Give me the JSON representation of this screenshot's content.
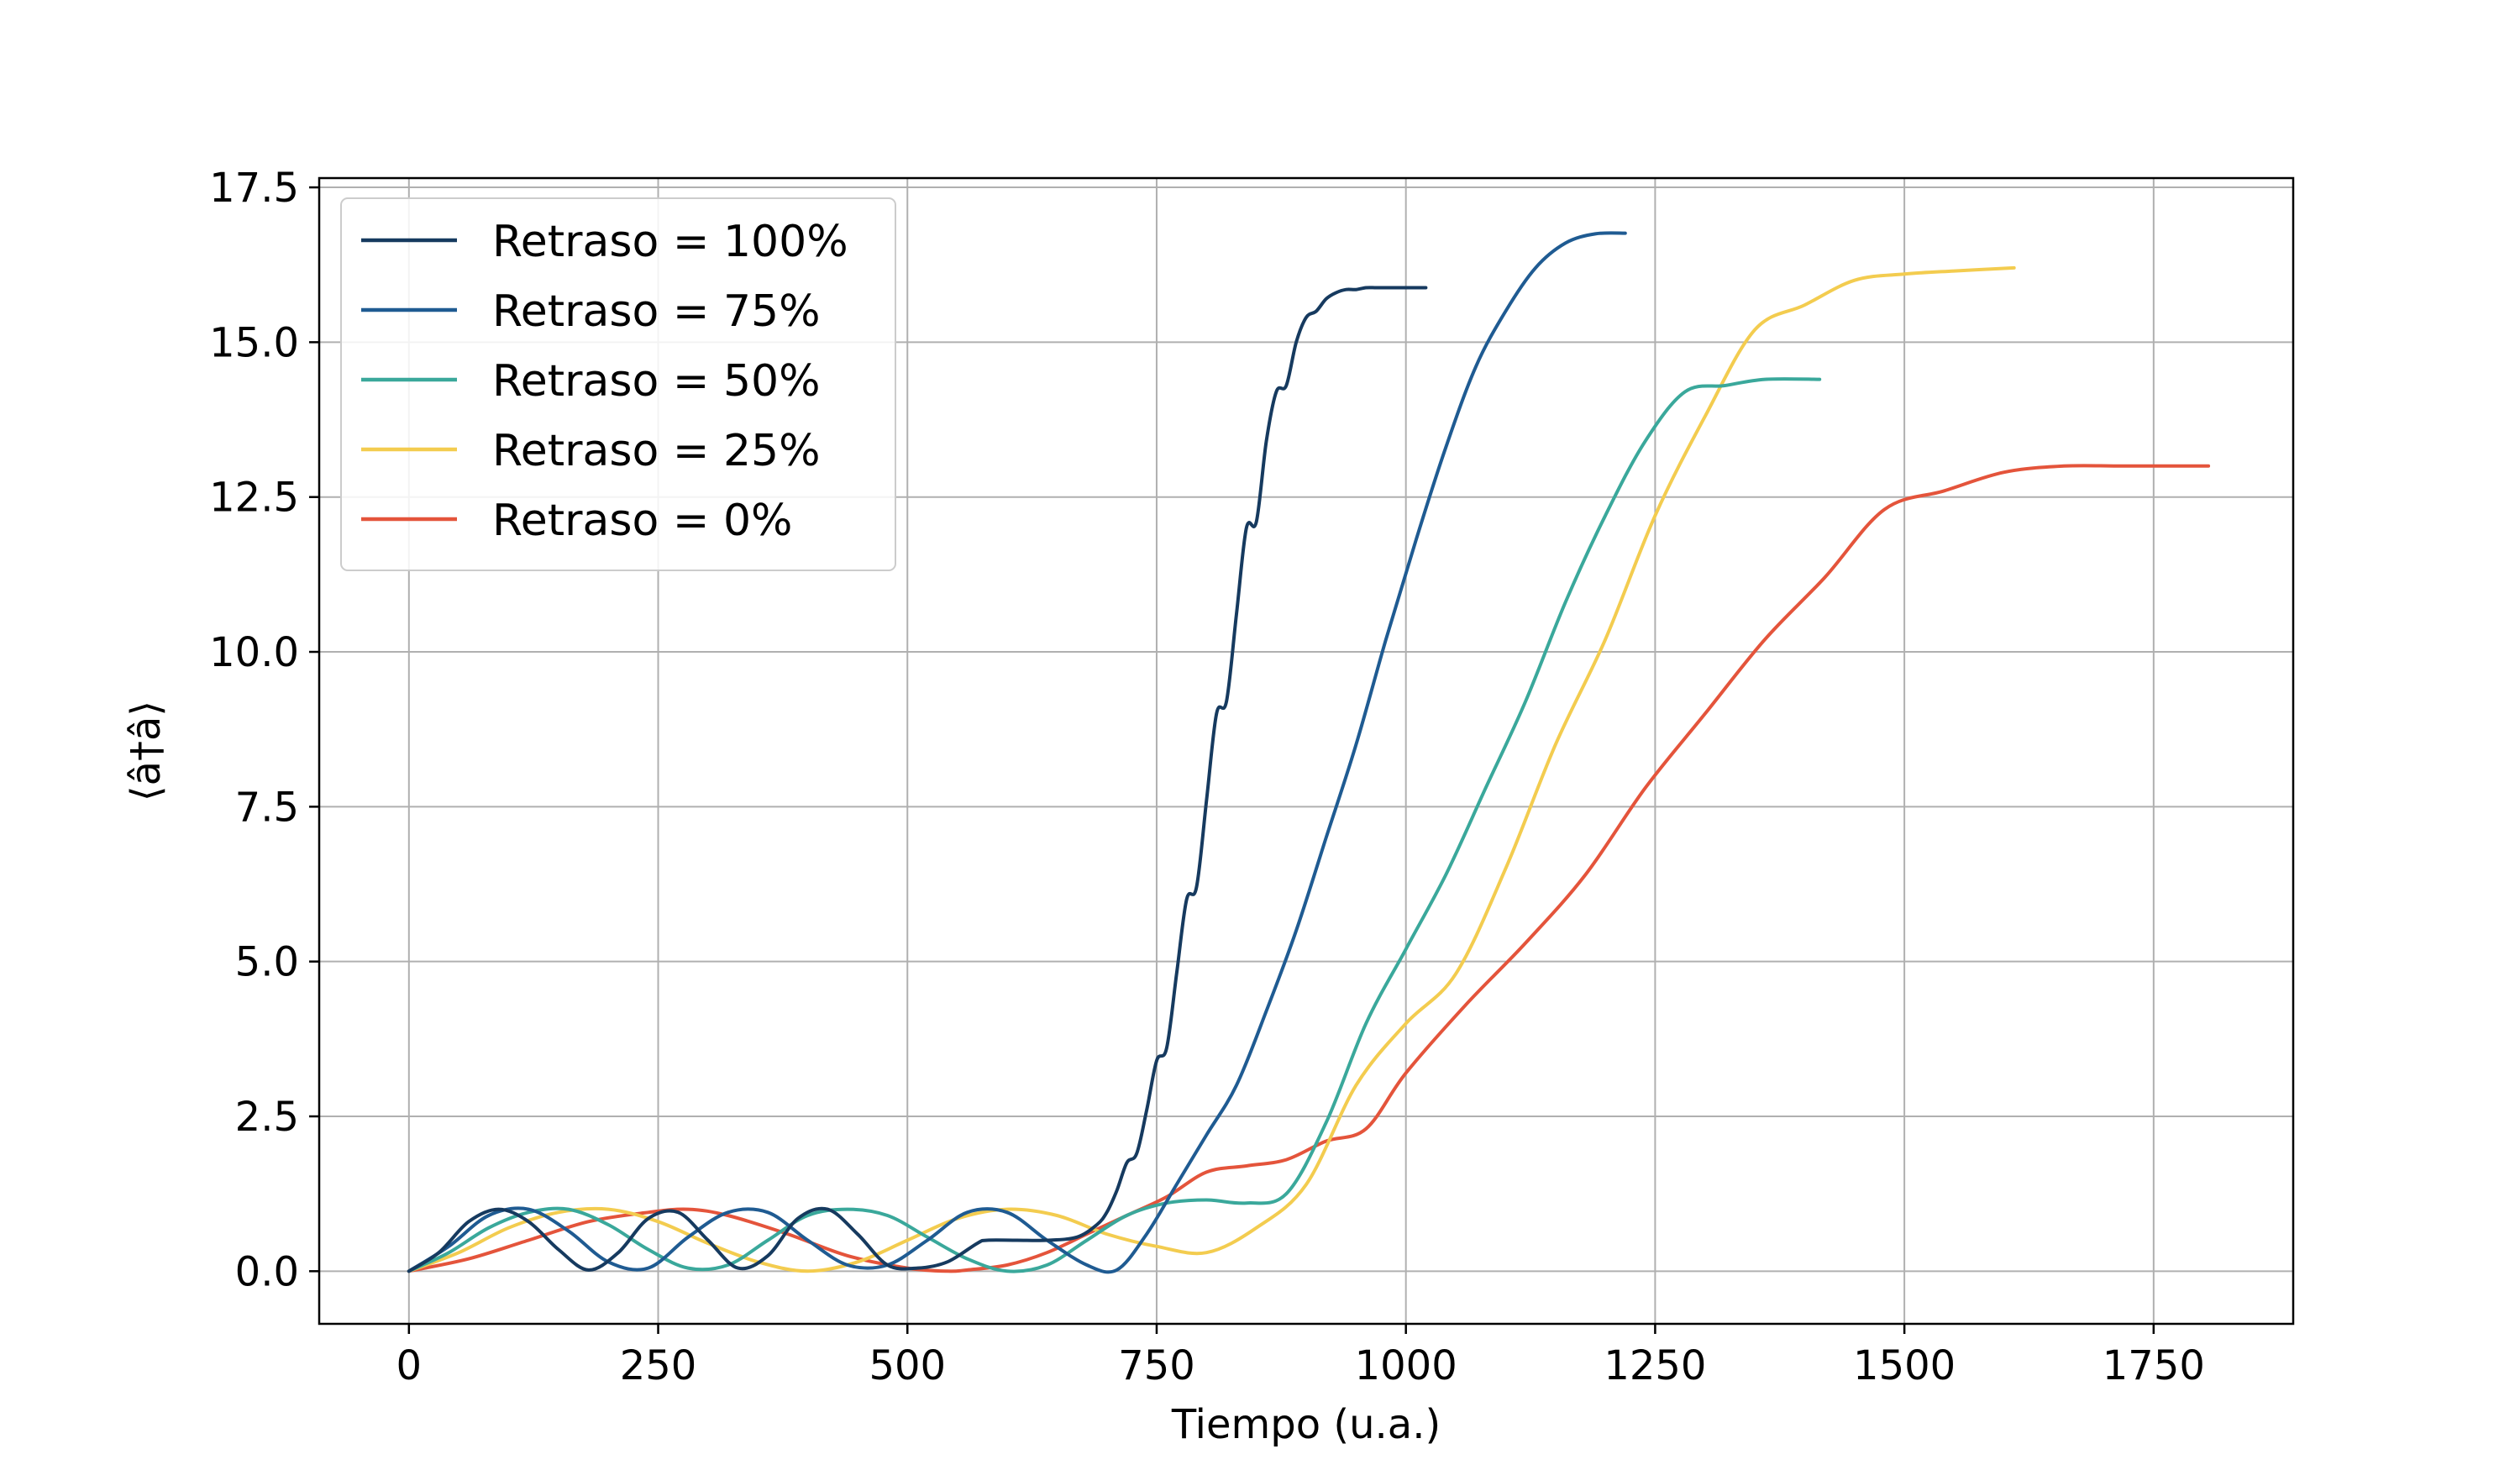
{
  "chart_data": {
    "type": "line",
    "xlabel": "Tiempo (u.a.)",
    "ylabel": "⟨â†â⟩",
    "xlim": [
      -90,
      1890
    ],
    "ylim": [
      -0.85,
      17.65
    ],
    "xticks": [
      0,
      250,
      500,
      750,
      1000,
      1250,
      1500,
      1750
    ],
    "yticks": [
      0.0,
      2.5,
      5.0,
      7.5,
      10.0,
      12.5,
      15.0,
      17.5
    ],
    "xtick_labels": [
      "0",
      "250",
      "500",
      "750",
      "1000",
      "1250",
      "1500",
      "1750"
    ],
    "ytick_labels": [
      "0.0",
      "2.5",
      "5.0",
      "7.5",
      "10.0",
      "12.5",
      "15.0",
      "17.5"
    ],
    "grid": true,
    "legend_position": "upper-left",
    "series": [
      {
        "name": "Retraso = 100%",
        "color": "#163a5f",
        "x": [
          0,
          30,
          60,
          90,
          120,
          150,
          180,
          210,
          240,
          270,
          300,
          330,
          360,
          390,
          420,
          450,
          480,
          510,
          540,
          570,
          580,
          610,
          640,
          670,
          690,
          700,
          710,
          720,
          730,
          740,
          750,
          760,
          770,
          780,
          790,
          800,
          810,
          820,
          830,
          840,
          850,
          860,
          870,
          880,
          890,
          900,
          910,
          920,
          930,
          940,
          950,
          960,
          970,
          980,
          1000,
          1020
        ],
        "y": [
          0,
          0.3,
          0.8,
          1.0,
          0.8,
          0.35,
          0.02,
          0.3,
          0.85,
          0.95,
          0.5,
          0.05,
          0.25,
          0.85,
          1.0,
          0.6,
          0.1,
          0.05,
          0.15,
          0.45,
          0.5,
          0.5,
          0.5,
          0.55,
          0.75,
          0.95,
          1.3,
          1.75,
          1.9,
          2.6,
          3.4,
          3.6,
          4.8,
          6.0,
          6.2,
          7.6,
          9.0,
          9.2,
          10.6,
          12.0,
          12.1,
          13.4,
          14.2,
          14.3,
          15.0,
          15.4,
          15.5,
          15.7,
          15.8,
          15.85,
          15.85,
          15.88,
          15.88,
          15.88,
          15.88,
          15.88
        ]
      },
      {
        "name": "Retraso = 75%",
        "color": "#1f5b92",
        "x": [
          0,
          40,
          80,
          120,
          160,
          200,
          240,
          280,
          320,
          360,
          400,
          440,
          480,
          520,
          560,
          600,
          640,
          680,
          710,
          740,
          770,
          800,
          830,
          860,
          890,
          920,
          950,
          980,
          1010,
          1040,
          1070,
          1100,
          1130,
          1160,
          1190,
          1220
        ],
        "y": [
          0,
          0.4,
          0.9,
          1.0,
          0.65,
          0.15,
          0.05,
          0.55,
          0.95,
          0.95,
          0.5,
          0.1,
          0.1,
          0.5,
          0.95,
          0.95,
          0.5,
          0.1,
          0.02,
          0.6,
          1.4,
          2.2,
          3.0,
          4.2,
          5.5,
          7.0,
          8.5,
          10.2,
          11.8,
          13.3,
          14.6,
          15.5,
          16.2,
          16.6,
          16.75,
          16.76
        ]
      },
      {
        "name": "Retraso = 50%",
        "color": "#3aa89b",
        "x": [
          0,
          40,
          80,
          120,
          160,
          200,
          240,
          280,
          320,
          360,
          400,
          440,
          480,
          520,
          560,
          600,
          640,
          680,
          720,
          760,
          800,
          840,
          880,
          920,
          960,
          1000,
          1040,
          1080,
          1120,
          1160,
          1200,
          1240,
          1280,
          1320,
          1360,
          1415
        ],
        "y": [
          0,
          0.3,
          0.7,
          0.95,
          1.0,
          0.75,
          0.35,
          0.05,
          0.1,
          0.5,
          0.9,
          1.0,
          0.9,
          0.55,
          0.2,
          0.0,
          0.1,
          0.5,
          0.9,
          1.1,
          1.15,
          1.1,
          1.25,
          2.4,
          4.0,
          5.2,
          6.4,
          7.8,
          9.2,
          10.8,
          12.2,
          13.4,
          14.2,
          14.3,
          14.4,
          14.4
        ]
      },
      {
        "name": "Retraso = 25%",
        "color": "#f3cc4f",
        "x": [
          0,
          50,
          100,
          150,
          200,
          250,
          300,
          350,
          400,
          450,
          500,
          550,
          600,
          650,
          700,
          750,
          800,
          850,
          900,
          950,
          1000,
          1050,
          1100,
          1150,
          1200,
          1250,
          1300,
          1350,
          1400,
          1450,
          1500,
          1550,
          1610
        ],
        "y": [
          0,
          0.3,
          0.7,
          0.95,
          1.0,
          0.8,
          0.45,
          0.15,
          0.0,
          0.15,
          0.5,
          0.85,
          1.0,
          0.9,
          0.6,
          0.4,
          0.3,
          0.7,
          1.4,
          3.0,
          4.0,
          4.8,
          6.5,
          8.5,
          10.2,
          12.2,
          13.8,
          15.2,
          15.6,
          16.0,
          16.1,
          16.15,
          16.2
        ]
      },
      {
        "name": "Retraso = 0%",
        "color": "#e4543b",
        "x": [
          0,
          60,
          120,
          180,
          240,
          280,
          320,
          380,
          440,
          500,
          540,
          560,
          600,
          640,
          680,
          720,
          760,
          800,
          840,
          880,
          920,
          960,
          1000,
          1060,
          1120,
          1180,
          1240,
          1300,
          1360,
          1420,
          1480,
          1540,
          1600,
          1660,
          1720,
          1805
        ],
        "y": [
          0,
          0.2,
          0.5,
          0.8,
          0.95,
          1.0,
          0.9,
          0.6,
          0.25,
          0.05,
          0.0,
          0.02,
          0.1,
          0.3,
          0.6,
          0.9,
          1.2,
          1.6,
          1.7,
          1.8,
          2.1,
          2.3,
          3.2,
          4.3,
          5.3,
          6.4,
          7.8,
          9.0,
          10.2,
          11.2,
          12.3,
          12.6,
          12.9,
          13.0,
          13.0,
          13.0
        ]
      }
    ]
  }
}
